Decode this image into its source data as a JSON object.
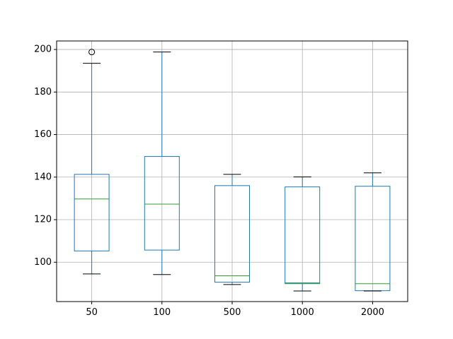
{
  "chart_data": {
    "type": "box",
    "title": "",
    "xlabel": "",
    "ylabel": "",
    "categories": [
      "50",
      "100",
      "500",
      "1000",
      "2000"
    ],
    "ylim": [
      81.5,
      204
    ],
    "yticks": [
      100,
      120,
      140,
      160,
      180,
      200
    ],
    "ytick_labels": [
      "100",
      "120",
      "140",
      "160",
      "180",
      "200"
    ],
    "grid": true,
    "boxes": [
      {
        "label": "50",
        "whislo": 94.5,
        "q1": 105.3,
        "med": 129.7,
        "q3": 141.3,
        "whishi": 193.5,
        "fliers": [
          198.8
        ]
      },
      {
        "label": "100",
        "whislo": 94.2,
        "q1": 105.7,
        "med": 127.3,
        "q3": 149.7,
        "whishi": 198.8,
        "fliers": []
      },
      {
        "label": "500",
        "whislo": 89.5,
        "q1": 90.6,
        "med": 93.6,
        "q3": 136.0,
        "whishi": 141.3,
        "fliers": []
      },
      {
        "label": "1000",
        "whislo": 86.5,
        "q1": 89.9,
        "med": 90.3,
        "q3": 135.4,
        "whishi": 140.1,
        "fliers": []
      },
      {
        "label": "2000",
        "whislo": 86.5,
        "q1": 86.6,
        "med": 89.9,
        "q3": 135.7,
        "whishi": 142.0,
        "fliers": []
      }
    ],
    "colors": {
      "box": "#1f77b4",
      "median": "#2ca02c",
      "cap": "#000000",
      "grid": "#b0b0b0",
      "flier": "#000000"
    }
  }
}
